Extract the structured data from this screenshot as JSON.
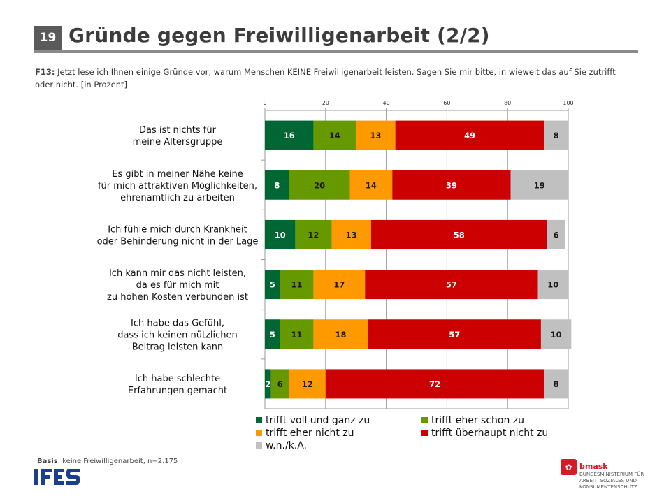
{
  "slide": {
    "page_number": "19",
    "title": "Gründe gegen Freiwilligenarbeit (2/2)",
    "question_code": "F13:",
    "question_text": "Jetzt lese ich Ihnen einige Gründe vor, warum Menschen KEINE Freiwilligenarbeit leisten. Sagen Sie mir bitte, in wieweit das auf Sie zutrifft oder nicht. [in Prozent]",
    "basis_label": "Basis",
    "basis_text": ": keine Freiwilligenarbeit, n=2.175"
  },
  "logos": {
    "ifes": "IFES",
    "bmask_name": "bmask",
    "bmask_ministry": [
      "BUNDESMINISTERIUM FÜR",
      "ARBEIT, SOZIALES UND",
      "KONSUMENTENSCHUTZ"
    ]
  },
  "chart_data": {
    "type": "bar",
    "orientation": "horizontal",
    "stacked": true,
    "xlim": [
      0,
      100
    ],
    "xticks": [
      0,
      20,
      40,
      60,
      80,
      100
    ],
    "grid": true,
    "legend_position": "bottom",
    "categories": [
      [
        "Das ist nichts für",
        "meine Altersgruppe"
      ],
      [
        "Es gibt in meiner Nähe keine",
        "für mich attraktiven Möglichkeiten,",
        "ehrenamtlich zu arbeiten"
      ],
      [
        "Ich fühle mich durch Krankheit",
        "oder Behinderung nicht in der Lage"
      ],
      [
        "Ich kann mir das nicht leisten,",
        "da es für mich mit",
        "zu hohen Kosten verbunden ist"
      ],
      [
        "Ich habe das Gefühl,",
        "dass ich keinen nützlichen",
        "Beitrag leisten kann"
      ],
      [
        "Ich habe schlechte",
        "Erfahrungen gemacht"
      ]
    ],
    "series": [
      {
        "name": "trifft voll und ganz zu",
        "color": "#006633",
        "values": [
          16,
          8,
          10,
          5,
          5,
          2
        ]
      },
      {
        "name": "trifft eher schon zu",
        "color": "#669900",
        "values": [
          14,
          20,
          12,
          11,
          11,
          6
        ]
      },
      {
        "name": "trifft eher nicht zu",
        "color": "#ff9900",
        "values": [
          13,
          14,
          13,
          17,
          18,
          12
        ]
      },
      {
        "name": "trifft überhaupt nicht zu",
        "color": "#cc0000",
        "values": [
          49,
          39,
          58,
          57,
          57,
          72
        ]
      },
      {
        "name": "w.n./k.A.",
        "color": "#c0c0c0",
        "values": [
          8,
          19,
          6,
          10,
          10,
          8
        ]
      }
    ]
  }
}
